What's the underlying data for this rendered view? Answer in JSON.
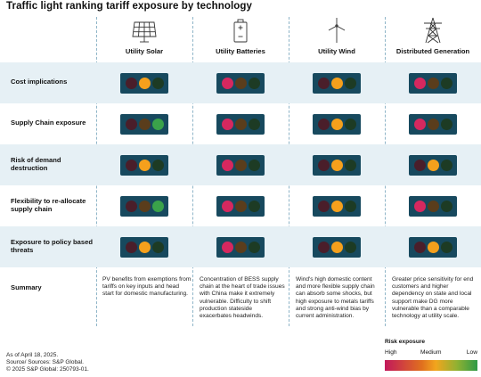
{
  "title": "Traffic light ranking tariff exposure by technology",
  "columns": [
    {
      "label": "Utility Solar",
      "icon": "solar-panel-icon"
    },
    {
      "label": "Utility Batteries",
      "icon": "battery-icon"
    },
    {
      "label": "Utility Wind",
      "icon": "wind-turbine-icon"
    },
    {
      "label": "Distributed Generation",
      "icon": "transmission-tower-icon"
    }
  ],
  "colors": {
    "red_on": "#d6285f",
    "red_off": "#4a1e2a",
    "yellow_on": "#f5a01c",
    "yellow_off": "#5a3d1c",
    "green_on": "#3aa24a",
    "green_off": "#1d3b24",
    "housing": "#17495e"
  },
  "rows": [
    {
      "label": "Cost implications",
      "ratings": [
        "yellow",
        "red",
        "yellow",
        "red"
      ]
    },
    {
      "label": "Supply Chain exposure",
      "ratings": [
        "green",
        "red",
        "yellow",
        "red"
      ]
    },
    {
      "label": "Risk of demand destruction",
      "ratings": [
        "yellow",
        "red",
        "yellow",
        "yellow"
      ]
    },
    {
      "label": "Flexibility to re-allocate supply chain",
      "ratings": [
        "green",
        "red",
        "yellow",
        "red"
      ]
    },
    {
      "label": "Exposure to policy based threats",
      "ratings": [
        "yellow",
        "red",
        "yellow",
        "yellow"
      ]
    }
  ],
  "summary": {
    "label": "Summary",
    "texts": [
      "PV benefits from exemptions from tariffs on key inputs and head start for domestic manufacturing.",
      "Concentration of BESS supply chain at the heart of trade issues with China make it extremely vulnerable. Difficulty to shift production stateside exacerbates headwinds.",
      "Wind's high domestic content and more flexible supply chain can absorb some shocks, but high exposure to metals tariffs and strong anti-wind bias by current administration.",
      "Greater price sensitivity for end customers and higher dependency on state and local support make DG more vulnerable than a comparable technology at utility scale."
    ]
  },
  "footer": {
    "line1": "As of April 18, 2025.",
    "line2": "Source/ Sources: S&P Global.",
    "line3": "© 2025 S&P Global: 250793-01."
  },
  "legend": {
    "title": "Risk exposure",
    "high": "High",
    "medium": "Medium",
    "low": "Low"
  }
}
